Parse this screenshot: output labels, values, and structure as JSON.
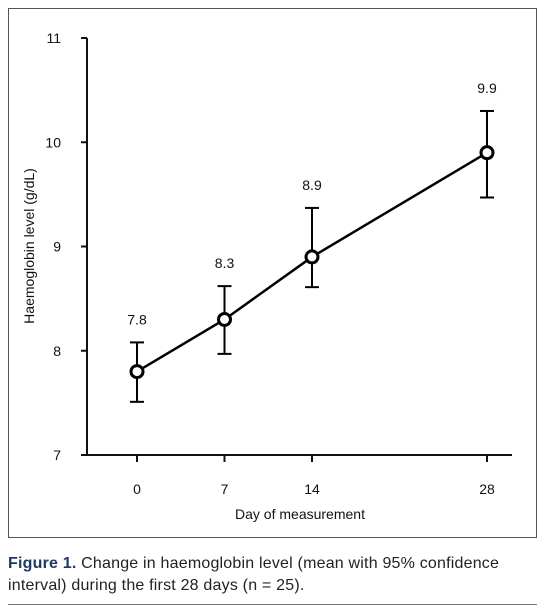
{
  "chart_data": {
    "type": "line",
    "x_label": "Day of measurement",
    "y_label": "Haemoglobin level (g/dL)",
    "x": [
      0,
      7,
      14,
      28
    ],
    "values": [
      7.8,
      8.3,
      8.9,
      9.9
    ],
    "ci_lower": [
      7.51,
      7.97,
      8.61,
      9.47
    ],
    "ci_upper": [
      8.08,
      8.62,
      9.37,
      10.3
    ],
    "color": "#000000",
    "xlim": [
      -4,
      30
    ],
    "xticks": [
      0,
      7,
      14,
      28
    ],
    "ylim": [
      7,
      11
    ],
    "yticks": [
      7,
      8,
      9,
      10,
      11
    ]
  },
  "caption_label": "Figure 1.",
  "caption": "Change in haemoglobin level (mean with 95% confidence interval) during the first 28 days (n = 25)."
}
